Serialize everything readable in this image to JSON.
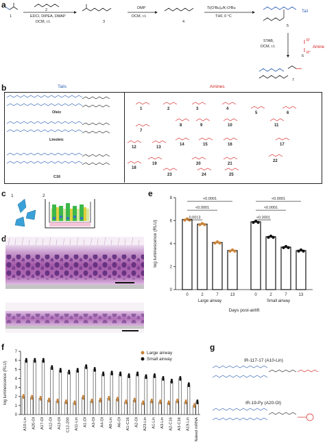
{
  "panels": {
    "a": "a",
    "b": "b",
    "c": "c",
    "d": "d",
    "e": "e",
    "f": "f",
    "g": "g"
  },
  "panel_a": {
    "compounds": [
      "1",
      "2",
      "3",
      "4",
      "5",
      "6",
      "7"
    ],
    "step1_reagents": "EDCI, DIPEA, DMAP",
    "step1_conditions": "DCM, r.t.",
    "step2_reagent": "DMP",
    "step2_conditions": "DCM, r.t.",
    "step3_reagent": "Ti(OⁱBu)₄/K-OᵗBu",
    "step3_conditions": "THF, 0 °C",
    "step4_reagent": "STAB,",
    "step4_conditions": "DCM, r.t.",
    "tail_label": "Tail",
    "amine_label": "Amine",
    "r_label": "R",
    "r1_label": "R'",
    "r2_label": "R\""
  },
  "panel_b": {
    "tails_header": "Tails",
    "amines_header": "Amines",
    "tails": [
      "Oleic",
      "Linoleic",
      "C16"
    ],
    "amine_numbers": [
      "1",
      "2",
      "3",
      "4",
      "5",
      "6",
      "7",
      "8",
      "9",
      "10",
      "11",
      "12",
      "13",
      "14",
      "15",
      "16",
      "17",
      "18",
      "19",
      "20",
      "21",
      "22",
      "23",
      "24",
      "25"
    ]
  },
  "panel_c": {
    "step1": "1",
    "step2": "2"
  },
  "panel_e": {
    "chart_data": {
      "type": "bar",
      "ylabel": "log luminescence (RLU)",
      "xlabel": "Days post-airlift",
      "ylim": [
        0,
        8
      ],
      "yticks": [
        "0",
        "2",
        "4",
        "6",
        "8"
      ],
      "groups": [
        {
          "name": "Large airway",
          "categories": [
            "0",
            "2",
            "7",
            "13"
          ],
          "values": [
            6.1,
            5.7,
            4.1,
            3.4
          ]
        },
        {
          "name": "Small airway",
          "categories": [
            "0",
            "2",
            "7",
            "13"
          ],
          "values": [
            5.9,
            4.6,
            3.7,
            3.4
          ]
        }
      ],
      "significance": [
        "<0.0001",
        "<0.0001",
        "0.0013",
        "<0.0001",
        "<0.0001",
        "<0.0001"
      ]
    }
  },
  "panel_f": {
    "chart_data": {
      "type": "bar",
      "ylabel": "log luminescence (RLU)",
      "ylim": [
        0,
        7
      ],
      "yticks": [
        "0",
        "1",
        "2",
        "3",
        "4",
        "5",
        "6",
        "7"
      ],
      "legend": [
        "Large airway",
        "Small airway"
      ],
      "legend_colors": [
        "#c8843a",
        "#111111"
      ],
      "categories": [
        "A10-Lin",
        "A20-Ol",
        "A17-Ol",
        "A12-Ol",
        "A13-Ol",
        "C12-200",
        "A11-Lin",
        "A1-Ol",
        "A3-Ol",
        "A4-Ol",
        "A8-Lin",
        "A6-Ol",
        "A1-C16",
        "A2-Ol",
        "A23-Lin",
        "A1-Lin",
        "A3-Lin",
        "A2-C16",
        "A3-C16",
        "A19-Lin",
        "Naked mRNA"
      ],
      "series": [
        {
          "name": "Large airway",
          "values": [
            2.0,
            1.9,
            1.8,
            1.6,
            1.5,
            1.4,
            1.3,
            1.9,
            1.5,
            1.6,
            1.8,
            1.7,
            1.4,
            1.6,
            1.3,
            1.5,
            1.4,
            1.3,
            1.5,
            1.4,
            1.0
          ]
        },
        {
          "name": "Small airway",
          "values": [
            6.0,
            6.0,
            6.0,
            5.2,
            4.9,
            4.7,
            4.9,
            5.3,
            5.0,
            4.5,
            4.6,
            4.5,
            4.3,
            4.5,
            4.2,
            4.3,
            4.0,
            3.7,
            4.0,
            3.3,
            1.4
          ]
        }
      ]
    }
  },
  "panel_g": {
    "items": [
      "IR-117-17 (A10-Lin)",
      "IR-19-Py (A20-Ol)"
    ]
  }
}
